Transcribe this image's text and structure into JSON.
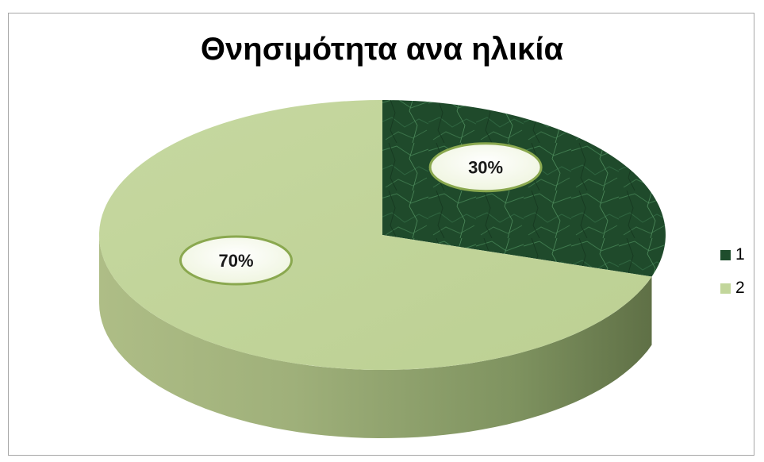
{
  "chart_data": {
    "type": "pie",
    "title": "Θνησιμότητα ανα ηλικία",
    "categories": [
      "1",
      "2"
    ],
    "values": [
      30,
      70
    ],
    "data_labels": [
      "30%",
      "70%"
    ],
    "legend_position": "right",
    "colors": [
      "#1e4d2c",
      "#c2d69b"
    ],
    "style": "3d"
  }
}
